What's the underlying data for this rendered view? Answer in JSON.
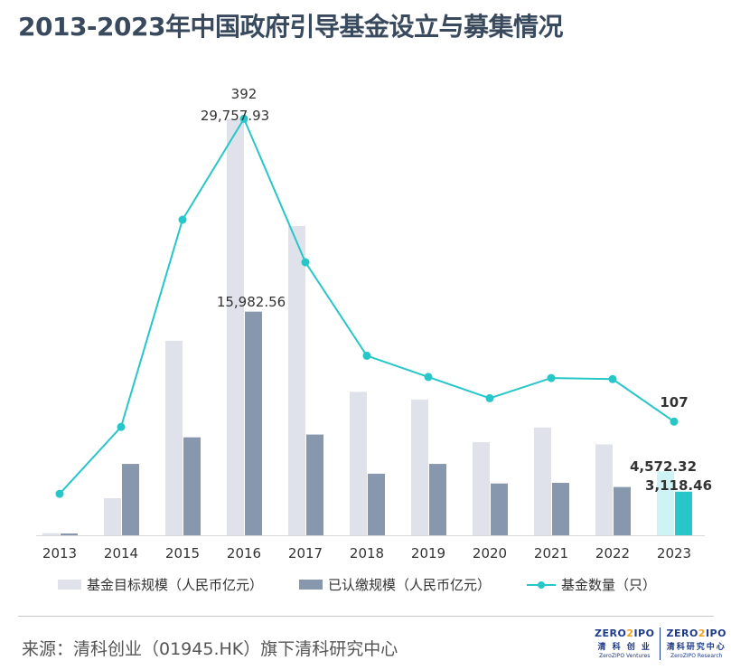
{
  "title": "2013-2023年中国政府引导基金设立与募集情况",
  "source": "来源：清科创业（01945.HK）旗下清科研究中心",
  "logos": {
    "left": {
      "mark_pre": "ZERO",
      "mark_two": "2",
      "mark_post": "IPO",
      "cn": "清 科 创 业",
      "en": "ZeroZIPO Ventures"
    },
    "right": {
      "mark_pre": "ZERO",
      "mark_two": "2",
      "mark_post": "IPO",
      "cn": "清科研究中心",
      "en": "ZeroZIPO Research"
    }
  },
  "legend": {
    "target": "基金目标规模（人民币亿元）",
    "paid": "已认缴规模（人民币亿元）",
    "count": "基金数量（只）"
  },
  "colors": {
    "target": "#dfe2ea",
    "paid": "#8797ae",
    "count_line": "#26c6c9",
    "target_2023": "#cdf3f5",
    "paid_2023": "#26c6c9"
  },
  "chart_data": {
    "type": "bar+line",
    "categories": [
      "2013",
      "2014",
      "2015",
      "2016",
      "2017",
      "2018",
      "2019",
      "2020",
      "2021",
      "2022",
      "2023"
    ],
    "series": [
      {
        "name": "基金目标规模（人民币亿元）",
        "type": "bar",
        "values": [
          150,
          2650,
          13900,
          29757.93,
          22100,
          10250,
          9700,
          6650,
          7700,
          6500,
          4572.32
        ]
      },
      {
        "name": "已认缴规模（人民币亿元）",
        "type": "bar",
        "values": [
          130,
          5100,
          7000,
          15982.56,
          7200,
          4400,
          5100,
          3700,
          3750,
          3450,
          3118.46
        ]
      },
      {
        "name": "基金数量（只）",
        "type": "line",
        "values": [
          39,
          102,
          297,
          392,
          257,
          169,
          149,
          129,
          148,
          147,
          107
        ]
      }
    ],
    "bar_ylim": [
      0,
      30500
    ],
    "line_ylim": [
      0,
      400
    ],
    "labels": {
      "target_2016": "29,757.93",
      "count_2016": "392",
      "paid_2016": "15,982.56",
      "target_2023": "4,572.32",
      "paid_2023": "3,118.46",
      "count_2023": "107"
    }
  }
}
